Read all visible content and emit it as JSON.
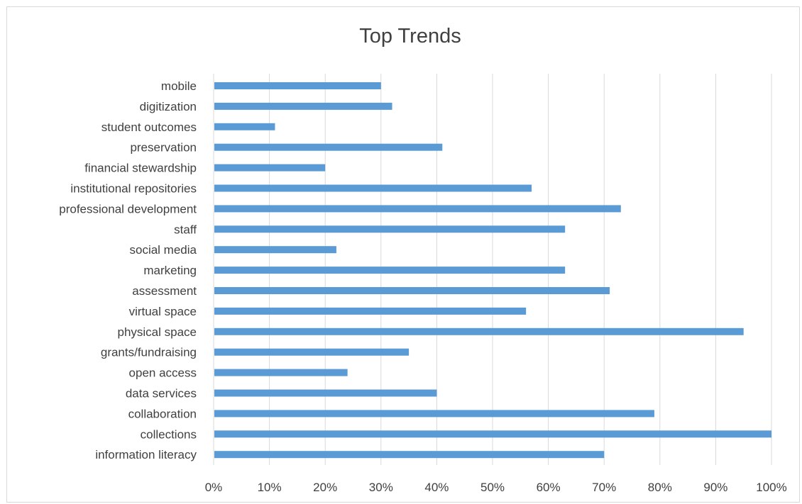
{
  "chart_data": {
    "type": "bar",
    "orientation": "horizontal",
    "title": "Top Trends",
    "xlabel": "",
    "ylabel": "",
    "categories": [
      "mobile",
      "digitization",
      "student outcomes",
      "preservation",
      "financial stewardship",
      "institutional repositories",
      "professional development",
      "staff",
      "social media",
      "marketing",
      "assessment",
      "virtual space",
      "physical space",
      "grants/fundraising",
      "open access",
      "data services",
      "collaboration",
      "collections",
      "information literacy"
    ],
    "values": [
      30,
      32,
      11,
      41,
      20,
      57,
      73,
      63,
      22,
      63,
      71,
      56,
      95,
      35,
      24,
      40,
      79,
      100,
      70
    ],
    "xlim": [
      0,
      100
    ],
    "x_ticks": [
      "0%",
      "10%",
      "20%",
      "30%",
      "40%",
      "50%",
      "60%",
      "70%",
      "80%",
      "90%",
      "100%"
    ],
    "grid": "vertical",
    "legend": "none",
    "bar_color": "#5b9bd5",
    "grid_color": "#d9d9d9"
  }
}
